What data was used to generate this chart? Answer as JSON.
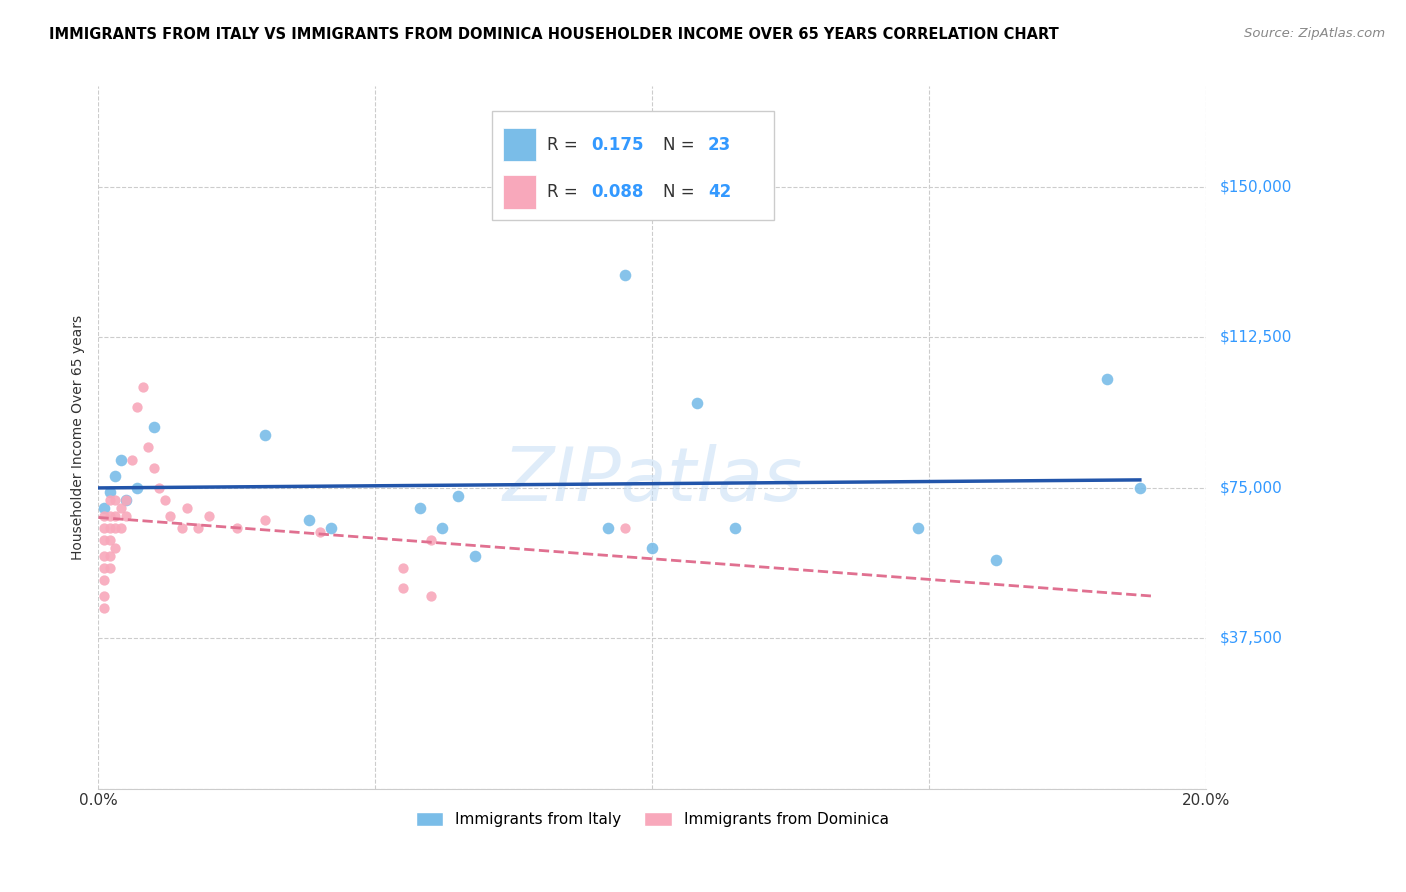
{
  "title": "IMMIGRANTS FROM ITALY VS IMMIGRANTS FROM DOMINICA HOUSEHOLDER INCOME OVER 65 YEARS CORRELATION CHART",
  "source": "Source: ZipAtlas.com",
  "ylabel": "Householder Income Over 65 years",
  "xlim": [
    0.0,
    0.2
  ],
  "ylim": [
    0,
    175000
  ],
  "yticks": [
    0,
    37500,
    75000,
    112500,
    150000
  ],
  "ytick_labels": [
    "",
    "$37,500",
    "$75,000",
    "$112,500",
    "$150,000"
  ],
  "xticks": [
    0.0,
    0.05,
    0.1,
    0.15,
    0.2
  ],
  "xtick_labels": [
    "0.0%",
    "",
    "",
    "",
    "20.0%"
  ],
  "watermark": "ZIPatlas",
  "italy_color": "#7abde8",
  "dominica_color": "#f8a8bb",
  "italy_R": 0.175,
  "italy_N": 23,
  "dominica_R": 0.088,
  "dominica_N": 42,
  "italy_line_color": "#2255aa",
  "dominica_line_color": "#e07090",
  "italy_x": [
    0.001,
    0.002,
    0.003,
    0.004,
    0.005,
    0.007,
    0.01,
    0.03,
    0.038,
    0.042,
    0.058,
    0.062,
    0.065,
    0.068,
    0.092,
    0.095,
    0.1,
    0.108,
    0.115,
    0.148,
    0.162,
    0.182,
    0.188
  ],
  "italy_y": [
    70000,
    74000,
    78000,
    82000,
    72000,
    75000,
    90000,
    88000,
    67000,
    65000,
    70000,
    65000,
    73000,
    58000,
    65000,
    128000,
    60000,
    96000,
    65000,
    65000,
    57000,
    102000,
    75000
  ],
  "dominica_x": [
    0.001,
    0.001,
    0.001,
    0.001,
    0.001,
    0.001,
    0.001,
    0.001,
    0.002,
    0.002,
    0.002,
    0.002,
    0.002,
    0.002,
    0.003,
    0.003,
    0.003,
    0.003,
    0.003,
    0.004,
    0.004,
    0.004,
    0.005,
    0.005,
    0.006,
    0.006,
    0.007,
    0.008,
    0.009,
    0.01,
    0.011,
    0.012,
    0.013,
    0.015,
    0.016,
    0.018,
    0.02,
    0.025,
    0.03,
    0.055,
    0.06,
    0.095
  ],
  "dominica_y": [
    68000,
    65000,
    62000,
    58000,
    55000,
    52000,
    48000,
    45000,
    70000,
    67000,
    65000,
    62000,
    58000,
    55000,
    72000,
    68000,
    65000,
    62000,
    58000,
    70000,
    65000,
    60000,
    72000,
    68000,
    82000,
    78000,
    95000,
    100000,
    85000,
    80000,
    75000,
    72000,
    68000,
    65000,
    70000,
    65000,
    68000,
    65000,
    67000,
    50000,
    62000,
    65000
  ],
  "background_color": "#ffffff",
  "grid_color": "#dddddd"
}
